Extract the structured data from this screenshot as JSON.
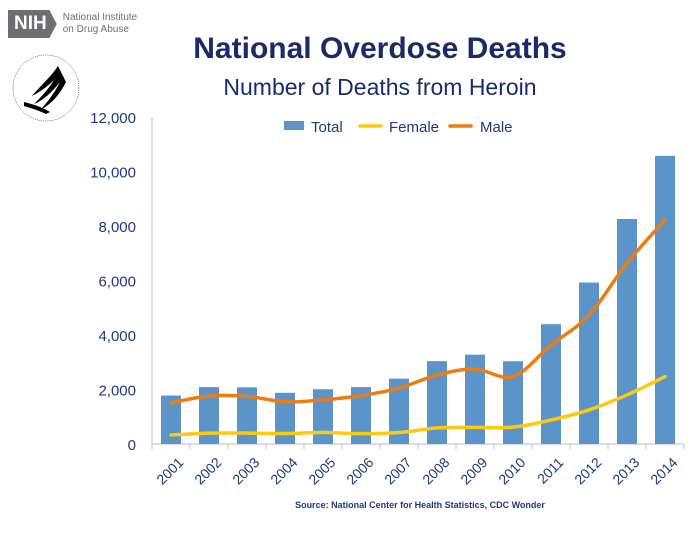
{
  "logo": {
    "nih_badge": "NIH",
    "nih_line1": "National Institute",
    "nih_line2": "on Drug Abuse",
    "hhs_seal_text": "DEPARTMENT OF HEALTH & HUMAN SERVICES·USA"
  },
  "title": "National Overdose Deaths",
  "subtitle": "Number of Deaths from Heroin",
  "source": "Source: National Center for Health Statistics, CDC Wonder",
  "colors": {
    "total": "#5b94c9",
    "female": "#ffc90e",
    "male": "#ee7d11",
    "text": "#1f3a7a"
  },
  "chart_data": {
    "type": "bar+line",
    "categories": [
      "2001",
      "2002",
      "2003",
      "2004",
      "2005",
      "2006",
      "2007",
      "2008",
      "2009",
      "2010",
      "2011",
      "2012",
      "2013",
      "2014"
    ],
    "series": [
      {
        "name": "Total",
        "type": "bar",
        "values": [
          1779,
          2089,
          2080,
          1878,
          2009,
          2088,
          2399,
          3041,
          3278,
          3036,
          4397,
          5925,
          8257,
          10574
        ]
      },
      {
        "name": "Female",
        "type": "line",
        "values": [
          330,
          400,
          400,
          384,
          420,
          380,
          420,
          590,
          612,
          620,
          880,
          1250,
          1800,
          2470
        ]
      },
      {
        "name": "Male",
        "type": "line",
        "values": [
          1505,
          1760,
          1750,
          1550,
          1620,
          1775,
          2050,
          2530,
          2750,
          2470,
          3630,
          4730,
          6640,
          8220
        ]
      }
    ],
    "yticks": [
      "0",
      "2,000",
      "4,000",
      "6,000",
      "8,000",
      "10,000",
      "12,000"
    ],
    "ylim": [
      0,
      12000
    ],
    "legend": "top",
    "grid": false
  }
}
